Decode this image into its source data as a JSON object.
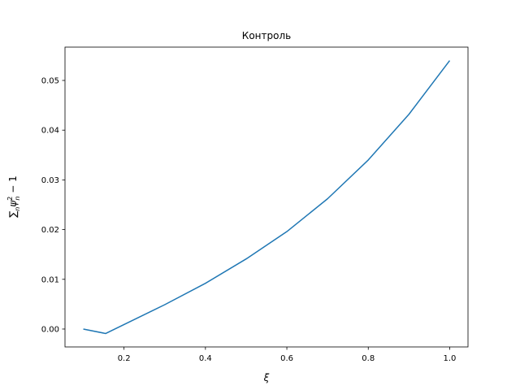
{
  "chart_data": {
    "type": "line",
    "title": "Контроль",
    "xlabel": "ξ",
    "ylabel_parts": {
      "sum": "∑",
      "sub": "n",
      "psi": "ψ",
      "sup": "2",
      "psi_sub": "n",
      "tail": " − 1"
    },
    "xlim": [
      0.055,
      1.045
    ],
    "ylim": [
      -0.0036,
      0.0567
    ],
    "xticks": [
      0.2,
      0.4,
      0.6,
      0.8,
      1.0
    ],
    "xtick_labels": [
      "0.2",
      "0.4",
      "0.6",
      "0.8",
      "1.0"
    ],
    "yticks": [
      0.0,
      0.01,
      0.02,
      0.03,
      0.04,
      0.05
    ],
    "ytick_labels": [
      "0.00",
      "0.01",
      "0.02",
      "0.03",
      "0.04",
      "0.05"
    ],
    "grid": false,
    "series": [
      {
        "color": "#1f77b4",
        "x": [
          0.1,
          0.155,
          0.2,
          0.3,
          0.4,
          0.5,
          0.6,
          0.7,
          0.8,
          0.9,
          1.0
        ],
        "y": [
          0.0,
          -0.0009,
          0.0009,
          0.0049,
          0.0092,
          0.0141,
          0.0196,
          0.0262,
          0.034,
          0.0432,
          0.054
        ]
      }
    ]
  }
}
